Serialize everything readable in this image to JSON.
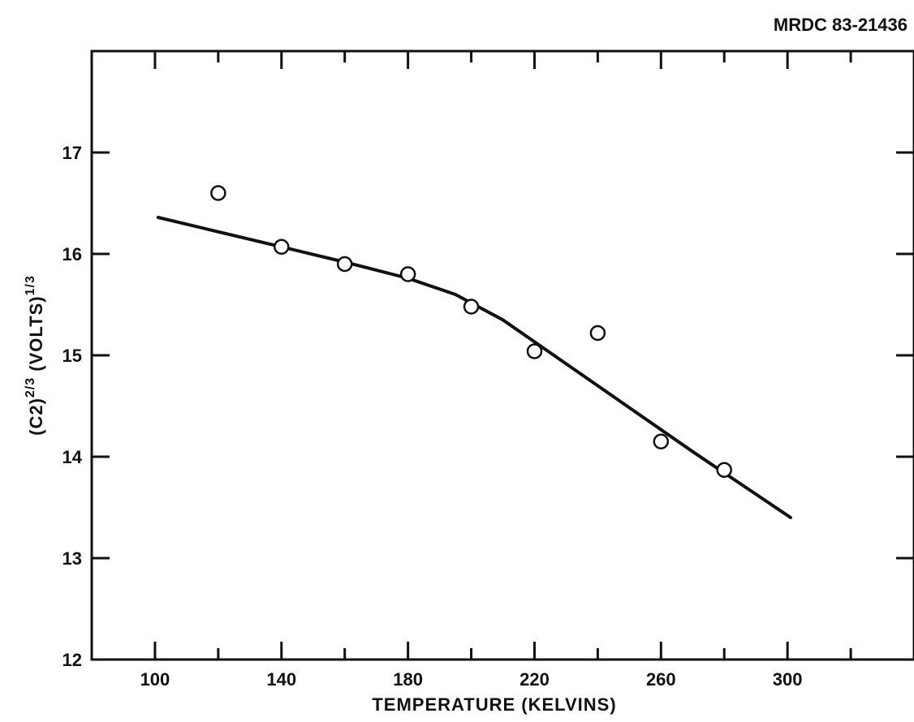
{
  "figure_code": "MRDC 83-21436",
  "chart_data": {
    "type": "scatter",
    "xlabel": "TEMPERATURE (KELVINS)",
    "ylabel": {
      "main1": "(C2)",
      "exp1": "2/3",
      "main2": " (VOLTS)",
      "exp2": "1/3"
    },
    "xlim": [
      80,
      340
    ],
    "ylim": [
      12,
      18
    ],
    "xticks": [
      100,
      140,
      180,
      220,
      260,
      300
    ],
    "yticks": [
      12,
      13,
      14,
      15,
      16,
      17
    ],
    "points": [
      {
        "x": 120,
        "y": 16.6
      },
      {
        "x": 140,
        "y": 16.07
      },
      {
        "x": 160,
        "y": 15.9
      },
      {
        "x": 180,
        "y": 15.8
      },
      {
        "x": 200,
        "y": 15.48
      },
      {
        "x": 220,
        "y": 15.04
      },
      {
        "x": 240,
        "y": 15.22
      },
      {
        "x": 260,
        "y": 14.15
      },
      {
        "x": 280,
        "y": 13.87
      }
    ],
    "fit_line": [
      {
        "x": 101,
        "y": 16.36
      },
      {
        "x": 140,
        "y": 16.07
      },
      {
        "x": 160,
        "y": 15.92
      },
      {
        "x": 180,
        "y": 15.76
      },
      {
        "x": 195,
        "y": 15.6
      },
      {
        "x": 210,
        "y": 15.35
      },
      {
        "x": 240,
        "y": 14.7
      },
      {
        "x": 270,
        "y": 14.05
      },
      {
        "x": 301,
        "y": 13.4
      }
    ],
    "grid": false
  }
}
